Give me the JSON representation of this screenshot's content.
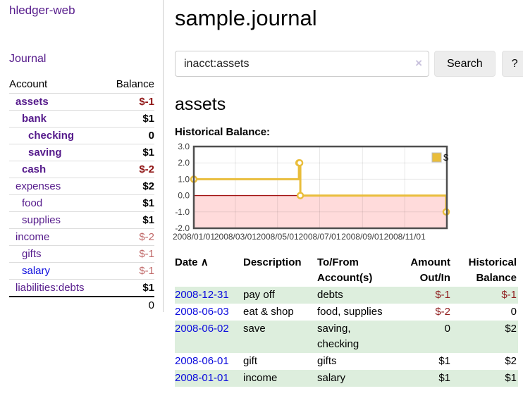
{
  "app": {
    "brand": "hledger-web",
    "nav_journal": "Journal"
  },
  "sidebar": {
    "header": {
      "account": "Account",
      "balance": "Balance"
    },
    "accounts": [
      {
        "name": "assets",
        "balance": "$-1",
        "indent": 1,
        "bold": true,
        "negative": true,
        "color": "purple"
      },
      {
        "name": "bank",
        "balance": "$1",
        "indent": 2,
        "bold": true,
        "negative": false,
        "color": "purple"
      },
      {
        "name": "checking",
        "balance": "0",
        "indent": 3,
        "bold": true,
        "negative": false,
        "color": "purple"
      },
      {
        "name": "saving",
        "balance": "$1",
        "indent": 3,
        "bold": true,
        "negative": false,
        "color": "purple"
      },
      {
        "name": "cash",
        "balance": "$-2",
        "indent": 2,
        "bold": true,
        "negative": true,
        "color": "purple"
      },
      {
        "name": "expenses",
        "balance": "$2",
        "indent": 1,
        "bold": false,
        "negative": false,
        "color": "purple"
      },
      {
        "name": "food",
        "balance": "$1",
        "indent": 2,
        "bold": false,
        "negative": false,
        "color": "purple"
      },
      {
        "name": "supplies",
        "balance": "$1",
        "indent": 2,
        "bold": false,
        "negative": false,
        "color": "purple"
      },
      {
        "name": "income",
        "balance": "$-2",
        "indent": 1,
        "bold": false,
        "negative": true,
        "color": "purple"
      },
      {
        "name": "gifts",
        "balance": "$-1",
        "indent": 2,
        "bold": false,
        "negative": true,
        "color": "purple"
      },
      {
        "name": "salary",
        "balance": "$-1",
        "indent": 2,
        "bold": false,
        "negative": true,
        "color": "blue"
      },
      {
        "name": "liabilities:debts",
        "balance": "$1",
        "indent": 1,
        "bold": false,
        "negative": false,
        "color": "purple"
      }
    ],
    "total": "0"
  },
  "header": {
    "title": "sample.journal"
  },
  "search": {
    "value": "inacct:assets",
    "clear_icon": "×",
    "button": "Search",
    "help_button": "?"
  },
  "register": {
    "heading": "assets",
    "chart_label": "Historical Balance:",
    "table": {
      "headers": {
        "date": "Date",
        "sort_icon": "∧",
        "description": "Description",
        "accounts": "To/From Account(s)",
        "amount": "Amount Out/In",
        "balance": "Historical Balance"
      },
      "rows": [
        {
          "date": "2008-12-31",
          "description": "pay off",
          "accounts": "debts",
          "amount": "$-1",
          "balance": "$-1",
          "amount_neg": true,
          "balance_neg": true,
          "shaded": true
        },
        {
          "date": "2008-06-03",
          "description": "eat & shop",
          "accounts": "food, supplies",
          "amount": "$-2",
          "balance": "0",
          "amount_neg": true,
          "balance_neg": false,
          "shaded": false
        },
        {
          "date": "2008-06-02",
          "description": "save",
          "accounts": "saving, checking",
          "amount": "0",
          "balance": "$2",
          "amount_neg": false,
          "balance_neg": false,
          "shaded": true
        },
        {
          "date": "2008-06-01",
          "description": "gift",
          "accounts": "gifts",
          "amount": "$1",
          "balance": "$2",
          "amount_neg": false,
          "balance_neg": false,
          "shaded": false
        },
        {
          "date": "2008-01-01",
          "description": "income",
          "accounts": "salary",
          "amount": "$1",
          "balance": "$1",
          "amount_neg": false,
          "balance_neg": false,
          "shaded": true
        }
      ]
    }
  },
  "chart_data": {
    "type": "line",
    "step": true,
    "title": "Historical Balance:",
    "series": [
      {
        "name": "$",
        "color": "#e9bd3b",
        "x": [
          "2008-01-01",
          "2008-06-01",
          "2008-06-02",
          "2008-06-03",
          "2008-12-31"
        ],
        "values": [
          1,
          2,
          2,
          0,
          -1
        ]
      }
    ],
    "xrange": [
      "2008-01-01",
      "2009-01-01"
    ],
    "ylim": [
      -2,
      3
    ],
    "yticks": [
      3,
      2,
      1,
      0,
      -1,
      -2
    ],
    "xticks": [
      {
        "date": "2008-01-01",
        "label": "2008/01/01"
      },
      {
        "date": "2008-03-01",
        "label": "2008/03/01"
      },
      {
        "date": "2008-05-01",
        "label": "2008/05/01"
      },
      {
        "date": "2008-07-01",
        "label": "2008/07/01"
      },
      {
        "date": "2008-09-01",
        "label": "2008/09/01"
      },
      {
        "date": "2008-11-01",
        "label": "2008/11/01"
      }
    ],
    "grid": true,
    "legend_position": "top-right",
    "negative_region_color": "#ffdbdb",
    "zero_line_color": "#a21313",
    "border_color": "#4f4f4f"
  }
}
